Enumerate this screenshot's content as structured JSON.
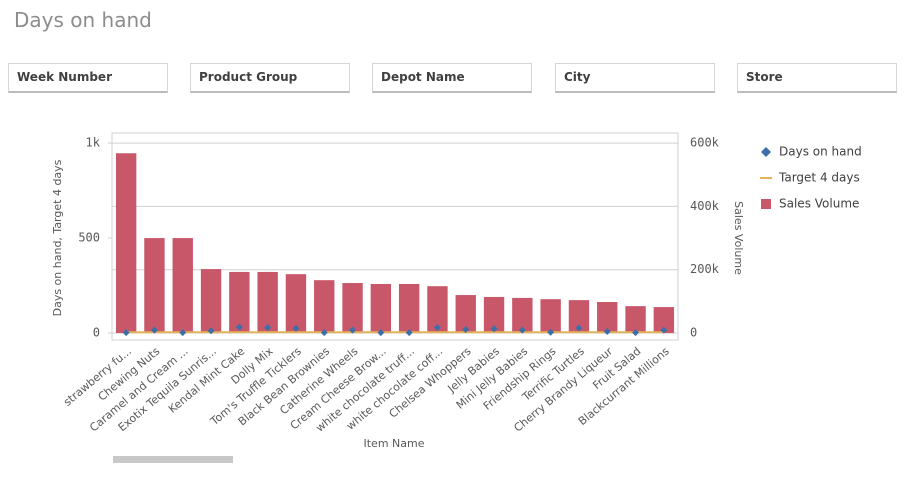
{
  "filters": [
    "Week Number",
    "Product Group",
    "Depot Name",
    "City",
    "Store"
  ],
  "chart_data": {
    "type": "combo",
    "title": "Days on hand",
    "x_label": "Item Name",
    "y_label": "Days on hand, Target 4 days",
    "y2_label": "Sales Volume",
    "categories": [
      "strawberry fu...",
      "Chewing Nuts",
      "Caramel and Cream ...",
      "Exotix Tequila Sunris...",
      "Kendal Mint Cake",
      "Dolly Mix",
      "Tom's Truffle Ticklers",
      "Black Bean Brownies",
      "Catherine Wheels",
      "Cream Cheese Brow...",
      "white chocolate truff...",
      "white chocolate coff...",
      "Chelsea Whoppers",
      "Jelly Babies",
      "Mini Jelly Babies",
      "Friendship Rings",
      "Terrific Turtles",
      "Cherry Brandy Liqueur",
      "Fruit Salad",
      "Blackcurrant Millions"
    ],
    "series": [
      {
        "name": "Days on hand",
        "type": "scatter",
        "color": "#3e6ea8",
        "values": [
          2,
          15,
          2,
          12,
          30,
          28,
          24,
          2,
          15,
          2,
          2,
          28,
          18,
          22,
          15,
          4,
          26,
          8,
          2,
          15
        ]
      },
      {
        "name": "Target 4 days",
        "type": "line",
        "color": "#e2b35a",
        "values": [
          4,
          4,
          4,
          4,
          4,
          4,
          4,
          4,
          4,
          4,
          4,
          4,
          4,
          4,
          4,
          4,
          4,
          4,
          4,
          4
        ]
      },
      {
        "name": "Sales Volume",
        "type": "bar",
        "axis": "y2",
        "color": "#c8576a",
        "values": [
          568000,
          300000,
          300000,
          202000,
          193000,
          193000,
          186000,
          167000,
          158000,
          155000,
          155000,
          148000,
          120000,
          114000,
          111000,
          107000,
          104000,
          98000,
          85000,
          82000
        ]
      }
    ],
    "ylim": [
      -37,
      1053
    ],
    "yticks": [
      0,
      500,
      {
        "value": 1000,
        "label": "1k"
      }
    ],
    "y2lim": [
      -22000,
      632000
    ],
    "y2ticks": [
      0,
      {
        "value": 200000,
        "label": "200k"
      },
      {
        "value": 400000,
        "label": "400k"
      },
      {
        "value": 600000,
        "label": "600k"
      }
    ],
    "grid": true,
    "legend": "right"
  }
}
